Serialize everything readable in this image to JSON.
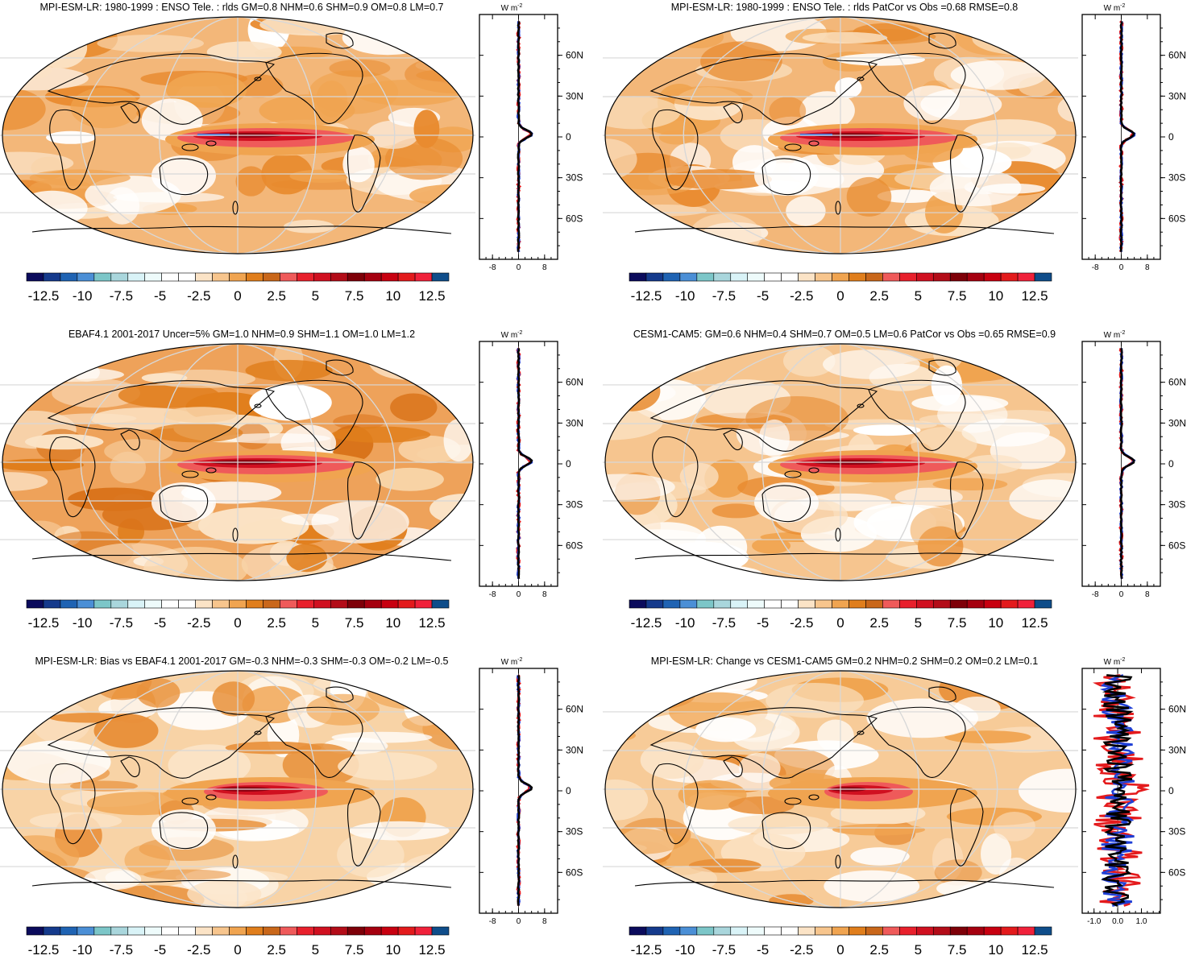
{
  "panels": [
    {
      "title": "MPI-ESM-LR: 1980-1999 : ENSO Tele. : rlds GM=0.8 NHM=0.6 SHM=0.9 OM=0.8 LM=0.7",
      "profile": {
        "xticks": [
          "-8",
          "0",
          "8"
        ],
        "xrange": [
          -12,
          12
        ]
      },
      "variant": "model"
    },
    {
      "title": "MPI-ESM-LR: 1980-1999 : ENSO Tele. : rlds PatCor vs Obs =0.68 RMSE=0.8",
      "profile": {
        "xticks": [
          "-8",
          "0",
          "8"
        ],
        "xrange": [
          -12,
          12
        ]
      },
      "variant": "model"
    },
    {
      "title": "EBAF4.1 2001-2017 Uncer=5% GM=1.0 NHM=0.9 SHM=1.1 OM=1.0 LM=1.2",
      "profile": {
        "xticks": [
          "-8",
          "0",
          "8"
        ],
        "xrange": [
          -12,
          12
        ]
      },
      "variant": "obs"
    },
    {
      "title": "CESM1-CAM5: GM=0.6 NHM=0.4 SHM=0.7 OM=0.5 LM=0.6 PatCor vs Obs =0.65 RMSE=0.9",
      "profile": {
        "xticks": [
          "-8",
          "0",
          "8"
        ],
        "xrange": [
          -12,
          12
        ]
      },
      "variant": "cesm"
    },
    {
      "title": "MPI-ESM-LR: Bias vs EBAF4.1 2001-2017 GM=-0.3 NHM=-0.3 SHM=-0.3 OM=-0.2 LM=-0.5",
      "profile": {
        "xticks": [
          "-8",
          "0",
          "8"
        ],
        "xrange": [
          -12,
          12
        ]
      },
      "variant": "bias"
    },
    {
      "title": "MPI-ESM-LR: Change vs CESM1-CAM5 GM=0.2 NHM=0.2 SHM=0.2 OM=0.2 LM=0.1",
      "profile": {
        "xticks": [
          "-1.0",
          "0.0",
          "1.0"
        ],
        "xrange": [
          -1.5,
          1.8
        ]
      },
      "variant": "change"
    }
  ],
  "profile_units": "W m",
  "profile_units_sup": "-2",
  "lat_ticks": [
    "60N",
    "30N",
    "0",
    "30S",
    "60S"
  ],
  "colorbar": {
    "labels": [
      "-12.5",
      "-10",
      "-7.5",
      "-5",
      "-2.5",
      "0",
      "2.5",
      "5",
      "7.5",
      "10",
      "12.5"
    ],
    "colors": [
      "#0b0b5c",
      "#153a8c",
      "#1f63b3",
      "#4b8fd6",
      "#7cc6c8",
      "#a9d6dc",
      "#d9f3f7",
      "#eefbfb",
      "#ffffff",
      "#ffffff",
      "#fbe3c6",
      "#f7c58d",
      "#f0a450",
      "#e07e1c",
      "#c9671a",
      "#ef5a5a",
      "#e8202c",
      "#d01020",
      "#b30c18",
      "#7e0008",
      "#a5000f",
      "#c80010",
      "#e31a1c",
      "#f0213a",
      "#0f4d8a"
    ]
  },
  "colors": {
    "profile_red": "#e41a1c",
    "profile_blue": "#1f3fd6",
    "profile_black": "#000000"
  }
}
